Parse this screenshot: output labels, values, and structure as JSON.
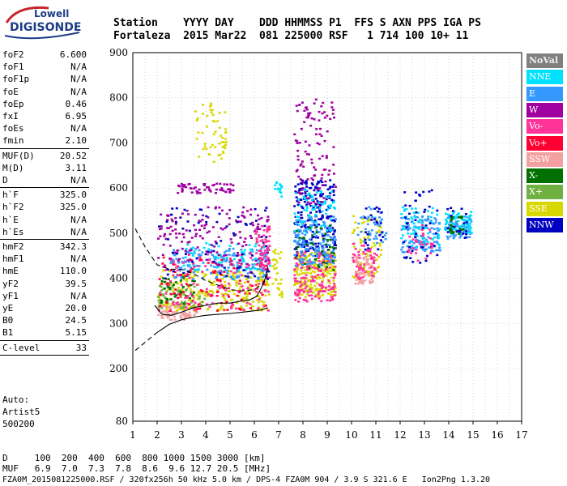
{
  "logo": {
    "line1": "Lowell",
    "line2": "DIGISONDE"
  },
  "header": {
    "row1": "Station    YYYY DAY    DDD HHMMSS P1  FFS S AXN PPS IGA PS",
    "row2": "Fortaleza  2015 Mar22  081 225000 RSF   1 714 100 10+ 11"
  },
  "params": [
    {
      "name": "foF2",
      "value": "6.600"
    },
    {
      "name": "foF1",
      "value": "N/A"
    },
    {
      "name": "foF1p",
      "value": "N/A"
    },
    {
      "name": "foE",
      "value": "N/A"
    },
    {
      "name": "foEp",
      "value": "0.46"
    },
    {
      "name": "fxI",
      "value": "6.95"
    },
    {
      "name": "foEs",
      "value": "N/A"
    },
    {
      "name": "fmin",
      "value": "2.10"
    },
    {
      "name": "MUF(D)",
      "value": "20.52"
    },
    {
      "name": "M(D)",
      "value": "3.11"
    },
    {
      "name": "D",
      "value": "N/A"
    },
    {
      "name": "h`F",
      "value": "325.0"
    },
    {
      "name": "h`F2",
      "value": "325.0"
    },
    {
      "name": "h`E",
      "value": "N/A"
    },
    {
      "name": "h`Es",
      "value": "N/A"
    },
    {
      "name": "hmF2",
      "value": "342.3"
    },
    {
      "name": "hmF1",
      "value": "N/A"
    },
    {
      "name": "hmE",
      "value": "110.0"
    },
    {
      "name": "yF2",
      "value": "39.5"
    },
    {
      "name": "yF1",
      "value": "N/A"
    },
    {
      "name": "yE",
      "value": "20.0"
    },
    {
      "name": "B0",
      "value": "24.5"
    },
    {
      "name": "B1",
      "value": "5.15"
    },
    {
      "name": "C-level",
      "value": "33"
    }
  ],
  "auto": {
    "line1": "Auto:",
    "line2": "Artist5",
    "line3": "500200"
  },
  "legend": [
    {
      "label": "NoVal",
      "color": "#808080"
    },
    {
      "label": "NNE",
      "color": "#00e0ff"
    },
    {
      "label": "E",
      "color": "#3399ff"
    },
    {
      "label": "W",
      "color": "#a000a0"
    },
    {
      "label": "Vo-",
      "color": "#ff3399"
    },
    {
      "label": "Vo+",
      "color": "#ff0033"
    },
    {
      "label": "SSW",
      "color": "#f5a0a0"
    },
    {
      "label": "X-",
      "color": "#007000"
    },
    {
      "label": "X+",
      "color": "#70b040"
    },
    {
      "label": "SSE",
      "color": "#d8d800"
    },
    {
      "label": "NNW",
      "color": "#0000c0"
    }
  ],
  "footer": {
    "d_row": "D     100  200  400  600  800 1000 1500 3000 [km]",
    "muf_row": "MUF   6.9  7.0  7.3  7.8  8.6  9.6 12.7 20.5 [MHz]",
    "file_row": "FZA0M_2015081225000.RSF / 320fx256h 50 kHz 5.0 km / DPS-4 FZA0M 904 / 3.9 S 321.6 E   Ion2Png 1.3.20"
  },
  "chart_data": {
    "type": "scatter",
    "title": "",
    "xlabel": "",
    "ylabel": "",
    "xlim": [
      1,
      17
    ],
    "ylim": [
      80,
      900
    ],
    "x_ticks": [
      1,
      2,
      3,
      4,
      5,
      6,
      7,
      8,
      9,
      10,
      11,
      12,
      13,
      14,
      15,
      16,
      17
    ],
    "y_ticks": [
      80,
      200,
      300,
      400,
      500,
      600,
      700,
      800,
      900
    ],
    "grid": true,
    "legend_placement": "right",
    "traces": [
      {
        "name": "virtual-height-trace",
        "style": "solid",
        "x": [
          1.9,
          2.2,
          2.6,
          3.0,
          3.5,
          4.0,
          4.5,
          5.0,
          5.5,
          5.8,
          6.1,
          6.3,
          6.45,
          6.55
        ],
        "y": [
          340,
          320,
          318,
          325,
          335,
          340,
          345,
          345,
          350,
          352,
          360,
          380,
          400,
          425
        ]
      },
      {
        "name": "profile-upper",
        "style": "dashed",
        "x": [
          1.1,
          1.5,
          2.0,
          2.5,
          3.0,
          3.5,
          4.0,
          4.5,
          5.0,
          5.5,
          6.0,
          6.4,
          6.55
        ],
        "y": [
          510,
          470,
          430,
          420,
          420,
          410,
          395,
          385,
          375,
          372,
          375,
          390,
          410
        ]
      },
      {
        "name": "profile-lower",
        "style": "solid",
        "x": [
          2.0,
          2.5,
          3.0,
          3.5,
          4.0,
          4.5,
          5.0,
          5.5,
          6.0,
          6.3,
          6.55
        ],
        "y": [
          280,
          298,
          308,
          314,
          318,
          320,
          322,
          325,
          328,
          330,
          335
        ]
      },
      {
        "name": "profile-bottom",
        "style": "dashed",
        "x": [
          1.1,
          1.5,
          2.0
        ],
        "y": [
          240,
          258,
          280
        ]
      }
    ],
    "echo_regions": [
      {
        "color": "#f5a0a0",
        "x": [
          2.0,
          3.6
        ],
        "y": [
          310,
          345
        ],
        "n": 90
      },
      {
        "color": "#d8d800",
        "x": [
          2.0,
          6.6
        ],
        "y": [
          330,
          420
        ],
        "n": 260
      },
      {
        "color": "#70b040",
        "x": [
          2.0,
          4.0
        ],
        "y": [
          335,
          390
        ],
        "n": 60
      },
      {
        "color": "#007000",
        "x": [
          2.1,
          3.5
        ],
        "y": [
          345,
          410
        ],
        "n": 40
      },
      {
        "color": "#3399ff",
        "x": [
          2.5,
          6.6
        ],
        "y": [
          400,
          470
        ],
        "n": 170
      },
      {
        "color": "#00e0ff",
        "x": [
          3.0,
          6.6
        ],
        "y": [
          420,
          480
        ],
        "n": 80
      },
      {
        "color": "#ff3399",
        "x": [
          2.0,
          6.6
        ],
        "y": [
          330,
          460
        ],
        "n": 130
      },
      {
        "color": "#ff0033",
        "x": [
          2.0,
          6.6
        ],
        "y": [
          330,
          450
        ],
        "n": 90
      },
      {
        "color": "#a000a0",
        "x": [
          2.0,
          6.6
        ],
        "y": [
          430,
          560
        ],
        "n": 150
      },
      {
        "color": "#a000a0",
        "x": [
          2.8,
          5.2
        ],
        "y": [
          590,
          612
        ],
        "n": 55
      },
      {
        "color": "#0000c0",
        "x": [
          2.0,
          6.6
        ],
        "y": [
          400,
          560
        ],
        "n": 70
      },
      {
        "color": "#d8d800",
        "x": [
          3.5,
          4.8
        ],
        "y": [
          660,
          790
        ],
        "n": 55
      },
      {
        "color": "#ff3399",
        "x": [
          6.0,
          6.6
        ],
        "y": [
          420,
          520
        ],
        "n": 60
      },
      {
        "color": "#00e0ff",
        "x": [
          6.8,
          7.1
        ],
        "y": [
          580,
          620
        ],
        "n": 15
      },
      {
        "color": "#d8d800",
        "x": [
          6.7,
          7.1
        ],
        "y": [
          360,
          470
        ],
        "n": 30
      },
      {
        "color": "#0000c0",
        "x": [
          7.6,
          9.3
        ],
        "y": [
          450,
          620
        ],
        "n": 220
      },
      {
        "color": "#a000a0",
        "x": [
          7.6,
          9.3
        ],
        "y": [
          560,
          800
        ],
        "n": 110
      },
      {
        "color": "#d8d800",
        "x": [
          7.6,
          9.3
        ],
        "y": [
          360,
          460
        ],
        "n": 220
      },
      {
        "color": "#ff3399",
        "x": [
          7.6,
          9.3
        ],
        "y": [
          350,
          460
        ],
        "n": 160
      },
      {
        "color": "#3399ff",
        "x": [
          7.6,
          9.3
        ],
        "y": [
          430,
          540
        ],
        "n": 140
      },
      {
        "color": "#00e0ff",
        "x": [
          7.6,
          9.3
        ],
        "y": [
          500,
          600
        ],
        "n": 70
      },
      {
        "color": "#007000",
        "x": [
          7.6,
          9.3
        ],
        "y": [
          420,
          520
        ],
        "n": 40
      },
      {
        "color": "#f5a0a0",
        "x": [
          10.1,
          10.9
        ],
        "y": [
          390,
          450
        ],
        "n": 90
      },
      {
        "color": "#d8d800",
        "x": [
          10.0,
          11.2
        ],
        "y": [
          400,
          540
        ],
        "n": 60
      },
      {
        "color": "#3399ff",
        "x": [
          10.2,
          11.4
        ],
        "y": [
          480,
          560
        ],
        "n": 40
      },
      {
        "color": "#ff3399",
        "x": [
          10.0,
          11.0
        ],
        "y": [
          400,
          480
        ],
        "n": 50
      },
      {
        "color": "#0000c0",
        "x": [
          10.5,
          11.3
        ],
        "y": [
          450,
          560
        ],
        "n": 25
      },
      {
        "color": "#3399ff",
        "x": [
          12.0,
          13.6
        ],
        "y": [
          460,
          540
        ],
        "n": 120
      },
      {
        "color": "#00e0ff",
        "x": [
          12.0,
          13.6
        ],
        "y": [
          470,
          560
        ],
        "n": 60
      },
      {
        "color": "#0000c0",
        "x": [
          12.1,
          13.5
        ],
        "y": [
          430,
          600
        ],
        "n": 45
      },
      {
        "color": "#ff3399",
        "x": [
          12.3,
          13.3
        ],
        "y": [
          440,
          520
        ],
        "n": 30
      },
      {
        "color": "#3399ff",
        "x": [
          13.8,
          14.9
        ],
        "y": [
          490,
          540
        ],
        "n": 80
      },
      {
        "color": "#00e0ff",
        "x": [
          13.8,
          14.9
        ],
        "y": [
          500,
          550
        ],
        "n": 60
      },
      {
        "color": "#007000",
        "x": [
          14.0,
          14.6
        ],
        "y": [
          500,
          540
        ],
        "n": 25
      },
      {
        "color": "#0000c0",
        "x": [
          13.9,
          14.7
        ],
        "y": [
          490,
          560
        ],
        "n": 20
      }
    ]
  }
}
